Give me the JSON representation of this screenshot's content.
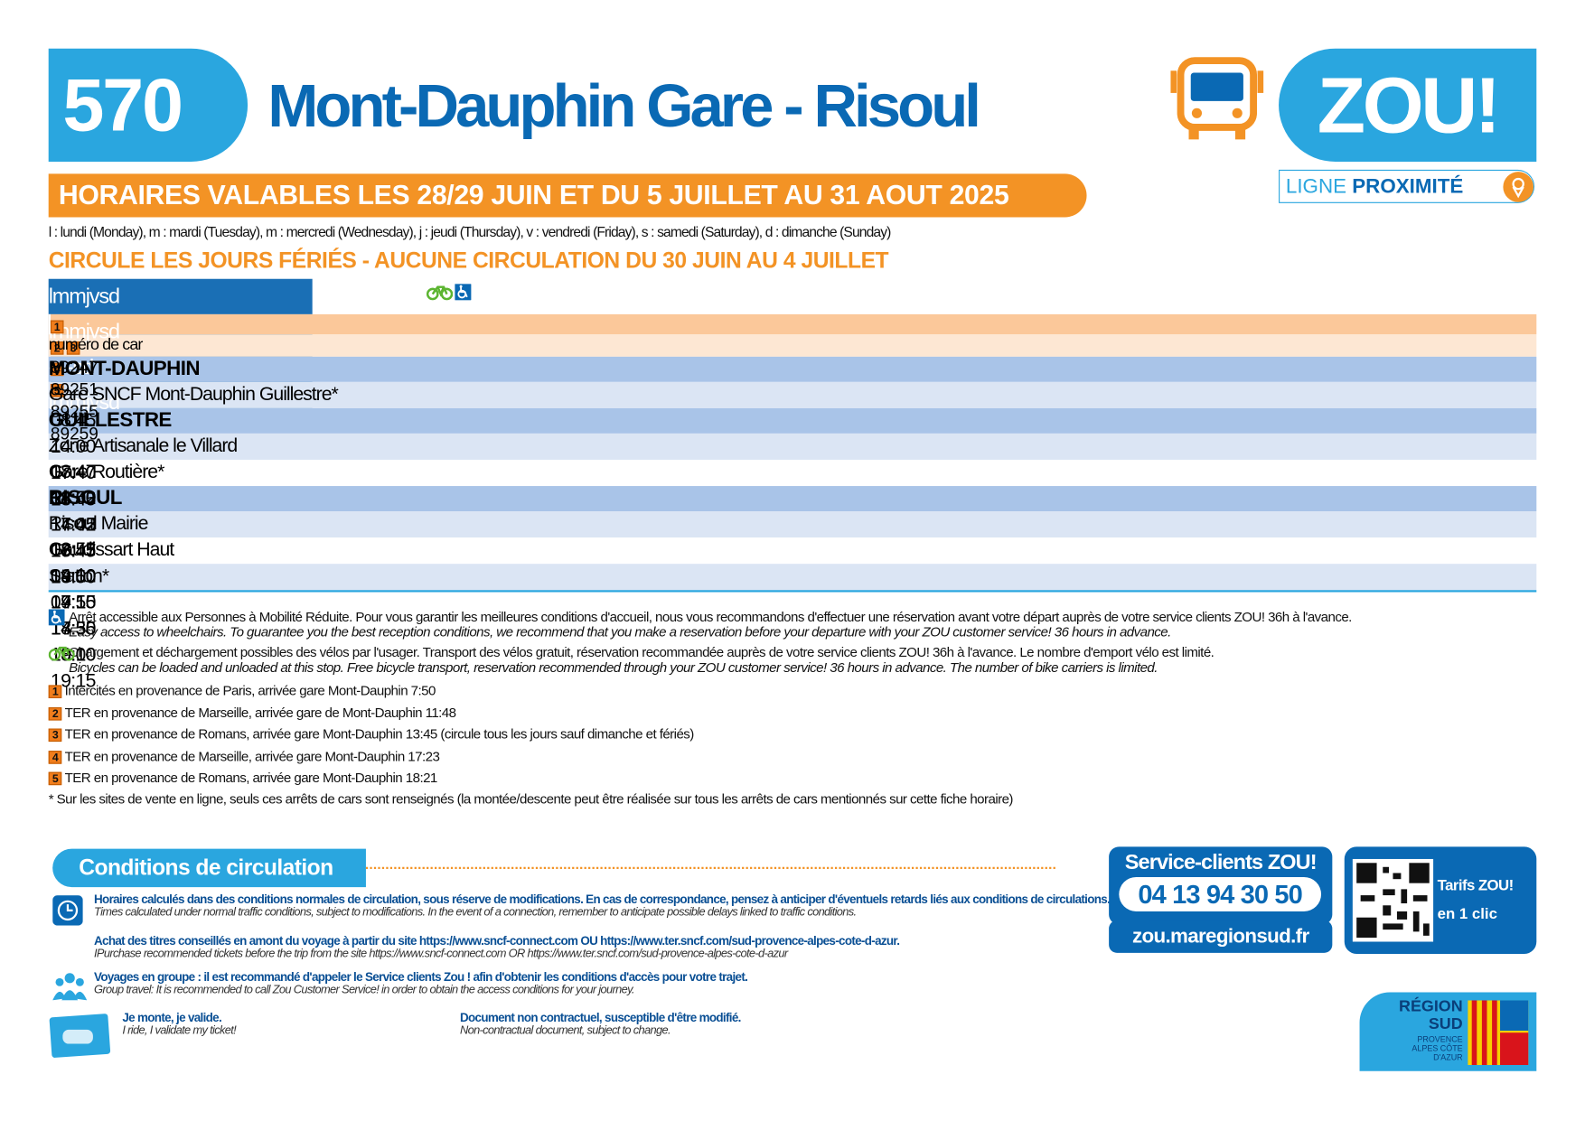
{
  "header": {
    "line": "570",
    "title": "Mont-Dauphin Gare - Risoul",
    "brand": "ZOU!",
    "ligne": "LIGNE",
    "proximite": "PROXIMITÉ"
  },
  "validity": "HORAIRES VALABLES LES 28/29 JUIN ET DU 5 JUILLET AU 31 AOUT 2025",
  "days_legend": "l : lundi (Monday), m : mardi (Tuesday), m : mercredi (Wednesday), j : jeudi (Thursday), v : vendredi (Friday), s : samedi (Saturday), d : dimanche (Sunday)",
  "notice": "CIRCULE LES JOURS FÉRIÉS - AUCUNE CIRCULATION DU 30 JUIN AU 4 JUILLET",
  "table": {
    "days": [
      "lmmjvsd",
      "lmmjvsd",
      "----sd",
      "lmmjvsd"
    ],
    "notes": [
      [
        "1"
      ],
      [
        "2",
        "3"
      ],
      [
        "4"
      ],
      [
        "5"
      ]
    ],
    "car_label": "numéro de car",
    "cars": [
      "89247",
      "89251",
      "89255",
      "89259"
    ],
    "sections": [
      {
        "name": "MONT-DAUPHIN",
        "stops": [
          {
            "name": "Gare SNCF Mont-Dauphin Guillestre*",
            "bike": true,
            "pmr": true,
            "times": [
              "08:45",
              "14:00",
              "17:40",
              "18:45"
            ]
          }
        ]
      },
      {
        "name": "GUILLESTRE",
        "stops": [
          {
            "name": "Zone Artisanale le Villard",
            "bike": false,
            "pmr": true,
            "times": [
              "08:47",
              "14:02",
              "17:42",
              "18:47"
            ]
          },
          {
            "name": "Gare Routière*",
            "bike": true,
            "pmr": true,
            "times": [
              "08:50",
              "14:05",
              "17:45",
              "18:50"
            ]
          }
        ]
      },
      {
        "name": "RISOUL",
        "stops": [
          {
            "name": "Risoul Mairie",
            "bike": false,
            "pmr": false,
            "times": [
              "08:55",
              "14:10",
              "17:50",
              "18:55"
            ]
          },
          {
            "name": "Gaudissart Haut",
            "bike": false,
            "pmr": false,
            "times": [
              "09:00",
              "14:15",
              "17:55",
              "19:00"
            ]
          },
          {
            "name": "Station*",
            "bike": true,
            "pmr": true,
            "times": [
              "09:15",
              "14:30",
              "18:10",
              "19:15"
            ]
          }
        ]
      }
    ]
  },
  "footnotes": {
    "pmr": {
      "fr": "Arrêt accessible aux Personnes à Mobilité Réduite. Pour vous garantir les meilleures conditions d'accueil, nous vous recommandons d'effectuer une réservation avant votre départ auprès de votre service clients ZOU! 36h à l'avance.",
      "en": "Easy access to wheelchairs. To guarantee you the best reception conditions, we recommend that you make a reservation before your departure with your ZOU customer service! 36 hours in advance."
    },
    "bike": {
      "fr": "Chargement et déchargement possibles des vélos par l'usager. Transport des vélos gratuit, réservation recommandée auprès de votre service clients ZOU! 36h à l'avance. Le nombre d'emport vélo est limité.",
      "en": "Bicycles can be loaded and unloaded at this stop. Free bicycle transport, reservation recommended through your ZOU customer service! 36 hours in advance. The number of bike carriers is limited."
    },
    "notes": [
      {
        "num": "1",
        "text": "Intercités en provenance de Paris, arrivée gare Mont-Dauphin 7:50"
      },
      {
        "num": "2",
        "text": "TER en provenance de Marseille, arrivée gare de Mont-Dauphin 11:48"
      },
      {
        "num": "3",
        "text": "TER en provenance de Romans, arrivée gare Mont-Dauphin 13:45 (circule tous les jours sauf dimanche et fériés)"
      },
      {
        "num": "4",
        "text": "TER en provenance de Marseille, arrivée gare Mont-Dauphin 17:23"
      },
      {
        "num": "5",
        "text": "TER en provenance de Romans, arrivée gare Mont-Dauphin 18:21"
      }
    ],
    "asterisk": "* Sur les sites de vente en ligne, seuls ces arrêts de cars sont renseignés (la montée/descente peut être réalisée sur tous les arrêts de cars mentionnés sur cette fiche horaire)"
  },
  "conditions": {
    "title": "Conditions de circulation",
    "items": [
      {
        "fr": "Horaires calculés dans des conditions normales de circulation, sous réserve de modifications. En cas de correspondance, pensez à anticiper d'éventuels retards liés aux conditions de circulations.",
        "en": "Times calculated under normal traffic conditions, subject to modifications. In the event of a connection, remember to anticipate possible delays linked to traffic conditions."
      },
      {
        "fr": "Achat des titres conseillés en amont du voyage à partir du site https://www.sncf-connect.com OU https://www.ter.sncf.com/sud-provence-alpes-cote-d-azur.",
        "en": "IPurchase recommended tickets before the trip from the site https://www.sncf-connect.com OR https://www.ter.sncf.com/sud-provence-alpes-cote-d-azur"
      },
      {
        "fr": "Voyages en groupe : il est recommandé d'appeler le Service clients Zou ! afin d'obtenir les conditions d'accès pour votre trajet.",
        "en": "Group travel: It is recommended to call Zou Customer Service! in order to obtain the access conditions for your journey."
      }
    ],
    "ride": {
      "fr": "Je monte, je valide.",
      "en": "I ride, I validate my ticket!"
    },
    "contract": {
      "fr": "Document non contractuel, susceptible d'être modifié.",
      "en": "Non-contractual document, subject to change."
    }
  },
  "service": {
    "label": "Service-clients ZOU!",
    "phone": "04 13 94 30 50",
    "web": "zou.maregionsud.fr",
    "tarifs": "Tarifs ZOU!",
    "clic": "en 1 clic"
  },
  "region": {
    "name": "RÉGION SUD",
    "sub": "PROVENCE ALPES CÔTE D'AZUR"
  }
}
